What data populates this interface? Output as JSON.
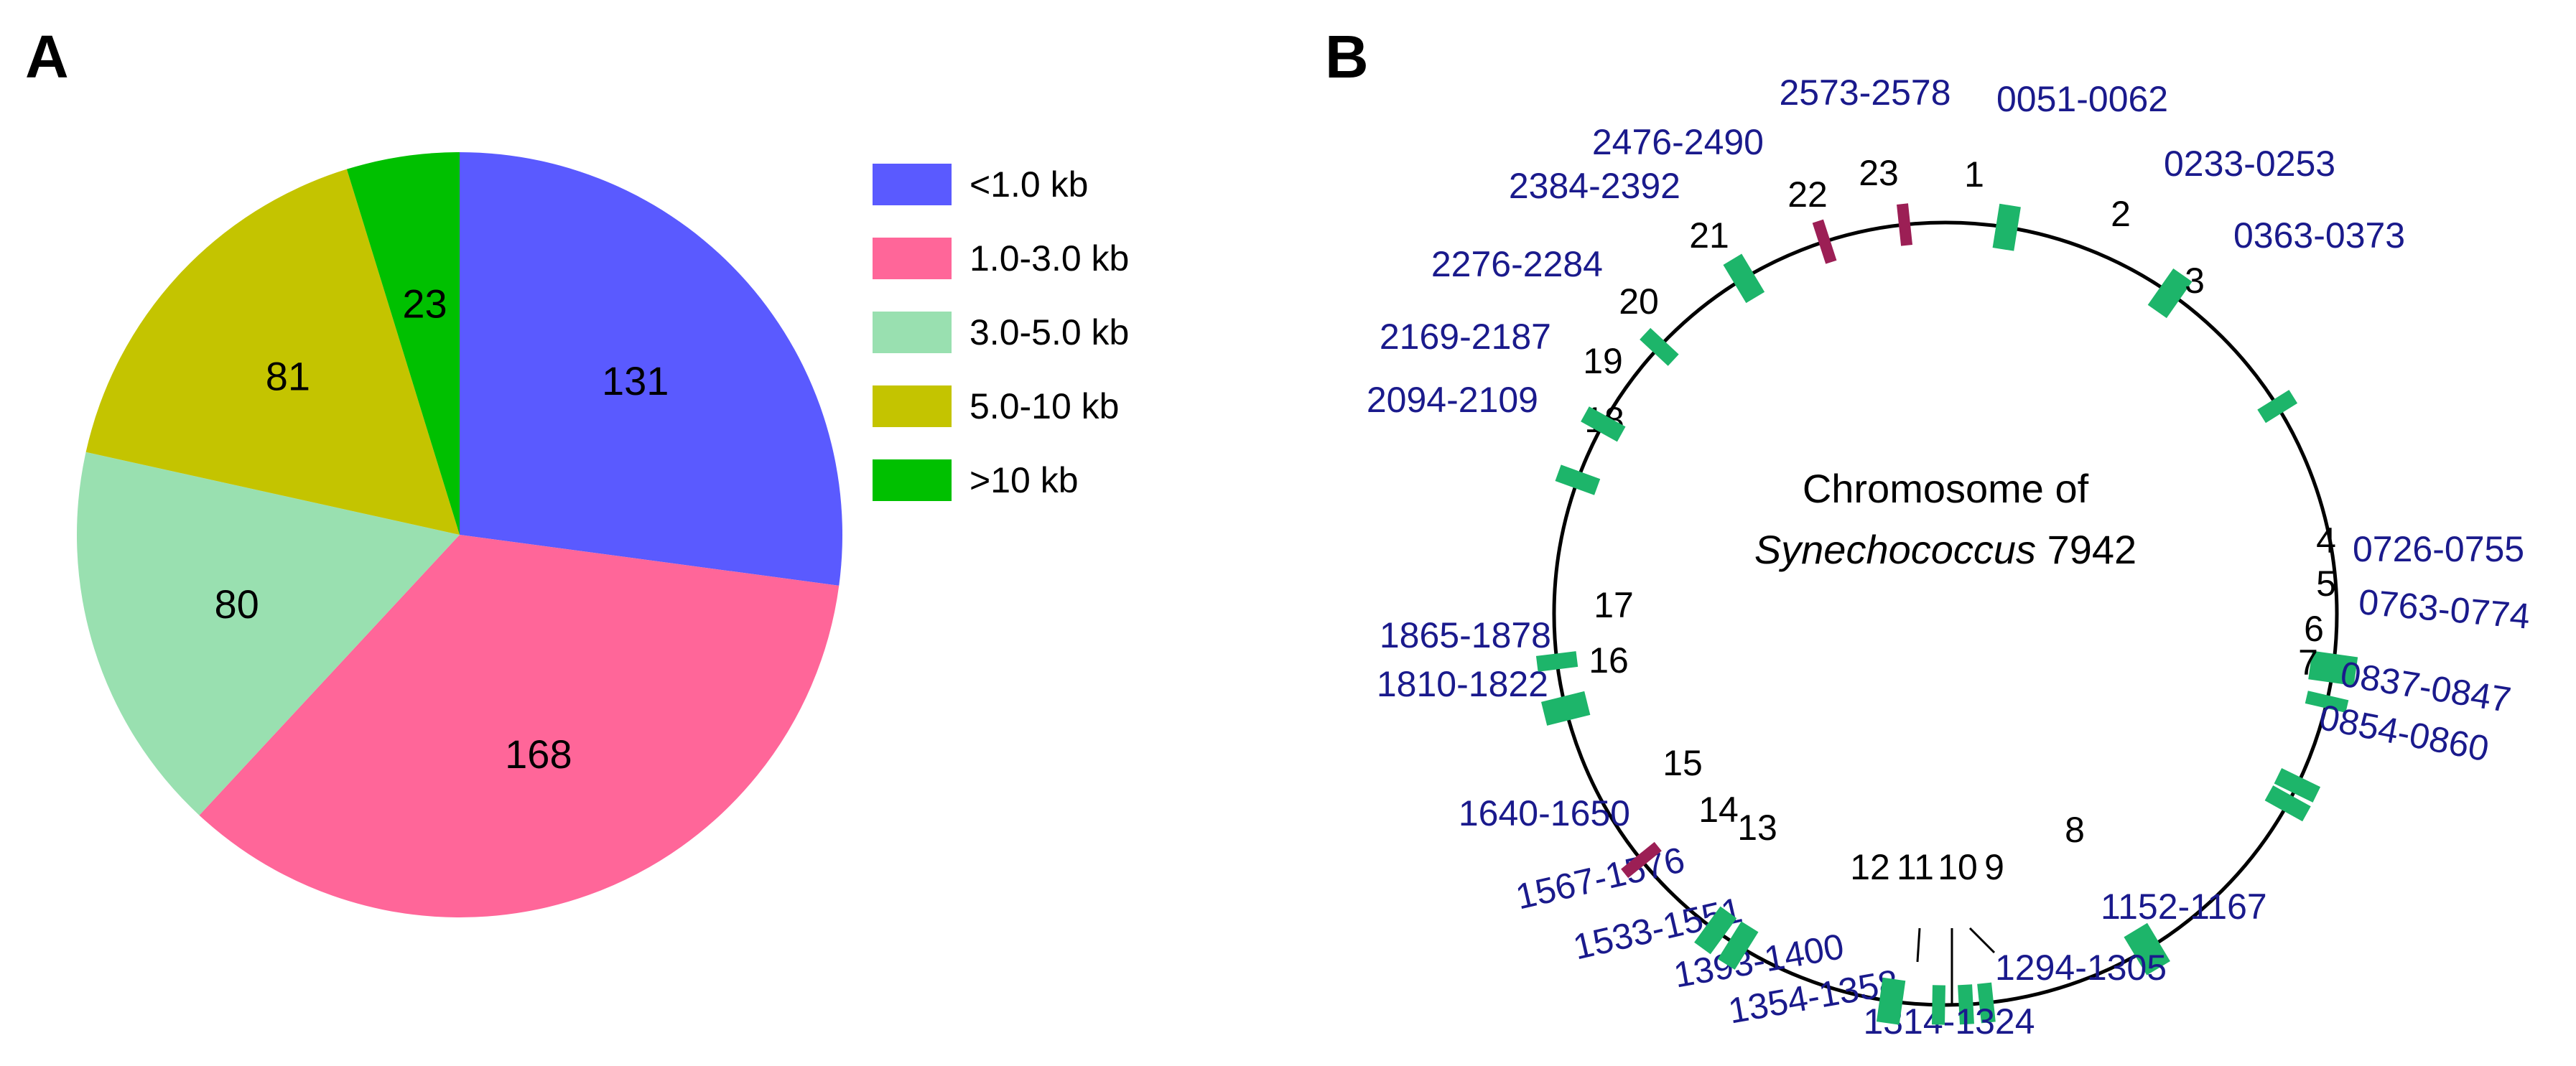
{
  "panels": {
    "a_label": "A",
    "b_label": "B"
  },
  "colors": {
    "green_marker": "#1db56a",
    "red_marker": "#9c1f55",
    "range_text": "#1a1a8c",
    "circle": "#000000"
  },
  "chart_data": [
    {
      "type": "pie",
      "title": "",
      "categories": [
        "<1.0 kb",
        "1.0-3.0 kb",
        "3.0-5.0 kb",
        "5.0-10 kb",
        ">10 kb"
      ],
      "values": [
        131,
        168,
        80,
        81,
        23
      ],
      "colors": [
        "#5a5aff",
        "#ff6699",
        "#99e0b0",
        "#c4c400",
        "#00c000"
      ],
      "start": "12 o'clock, clockwise",
      "legend_position": "right"
    },
    {
      "type": "circular-map",
      "center_title": "Chromosome of",
      "center_species": "Synechococcus",
      "center_strain": "7942",
      "markers": [
        {
          "num": "1",
          "range": "0051-0062",
          "angle_deg": 9,
          "color": "green"
        },
        {
          "num": "2",
          "range": "0233-0253",
          "angle_deg": 35,
          "color": "green"
        },
        {
          "num": "3",
          "range": "0363-0373",
          "angle_deg": 58,
          "color": "green"
        },
        {
          "num": "4",
          "range": "0726-0755",
          "angle_deg": 98,
          "color": "green"
        },
        {
          "num": "5",
          "range": "0763-0774",
          "angle_deg": 103,
          "color": "green"
        },
        {
          "num": "6",
          "range": "0837-0847",
          "angle_deg": 116,
          "color": "green"
        },
        {
          "num": "7",
          "range": "0854-0860",
          "angle_deg": 119,
          "color": "green"
        },
        {
          "num": "8",
          "range": "1152-1167",
          "angle_deg": 149,
          "color": "green"
        },
        {
          "num": "9",
          "range": "1294-1305",
          "angle_deg": 174,
          "color": "green"
        },
        {
          "num": "10",
          "range": "1314-1324",
          "angle_deg": 177,
          "color": "green"
        },
        {
          "num": "11",
          "range": "1354-1358",
          "angle_deg": 181,
          "color": "green"
        },
        {
          "num": "12",
          "range": "1393-1400",
          "angle_deg": 188,
          "color": "green"
        },
        {
          "num": "13",
          "range": "1533-1551",
          "angle_deg": 212,
          "color": "green"
        },
        {
          "num": "14",
          "range": "1567-1576",
          "angle_deg": 216,
          "color": "green"
        },
        {
          "num": "15",
          "range": "1640-1650",
          "angle_deg": 231,
          "color": "red"
        },
        {
          "num": "16",
          "range": "1810-1822",
          "angle_deg": 256,
          "color": "green"
        },
        {
          "num": "17",
          "range": "1865-1878",
          "angle_deg": 263,
          "color": "green"
        },
        {
          "num": "18",
          "range": "2094-2109",
          "angle_deg": 290,
          "color": "green"
        },
        {
          "num": "19",
          "range": "2169-2187",
          "angle_deg": 299,
          "color": "green"
        },
        {
          "num": "20",
          "range": "2276-2284",
          "angle_deg": 313,
          "color": "green"
        },
        {
          "num": "21",
          "range": "2384-2392",
          "angle_deg": 329,
          "color": "green"
        },
        {
          "num": "22",
          "range": "2476-2490",
          "angle_deg": 342,
          "color": "red"
        },
        {
          "num": "23",
          "range": "2573-2578",
          "angle_deg": 354,
          "color": "red"
        }
      ]
    }
  ]
}
